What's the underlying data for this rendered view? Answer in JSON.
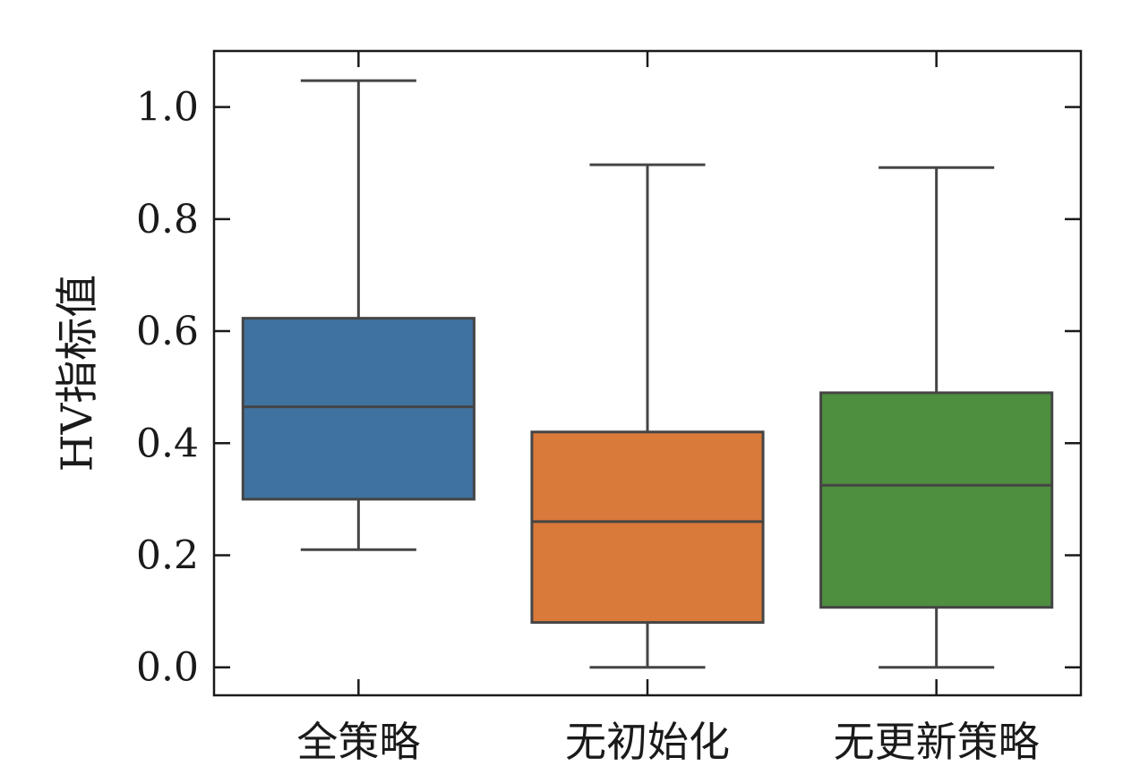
{
  "chart_data": {
    "type": "box",
    "title": "",
    "xlabel": "",
    "ylabel": "HV指标值",
    "ylim": [
      -0.05,
      1.1
    ],
    "yticks": [
      0.0,
      0.2,
      0.4,
      0.6,
      0.8,
      1.0
    ],
    "ytick_labels": [
      "0.0",
      "0.2",
      "0.4",
      "0.6",
      "0.8",
      "1.0"
    ],
    "grid": false,
    "categories": [
      "全策略",
      "无初始化",
      "无更新策略"
    ],
    "boxes": [
      {
        "whisker_low": 0.21,
        "q1": 0.3,
        "median": 0.465,
        "q3": 0.623,
        "whisker_high": 1.047,
        "color": "#3f729f"
      },
      {
        "whisker_low": 0.0,
        "q1": 0.08,
        "median": 0.26,
        "q3": 0.42,
        "whisker_high": 0.897,
        "color": "#d9793a"
      },
      {
        "whisker_low": 0.0,
        "q1": 0.107,
        "median": 0.325,
        "q3": 0.49,
        "whisker_high": 0.892,
        "color": "#4e8e3f"
      }
    ]
  }
}
